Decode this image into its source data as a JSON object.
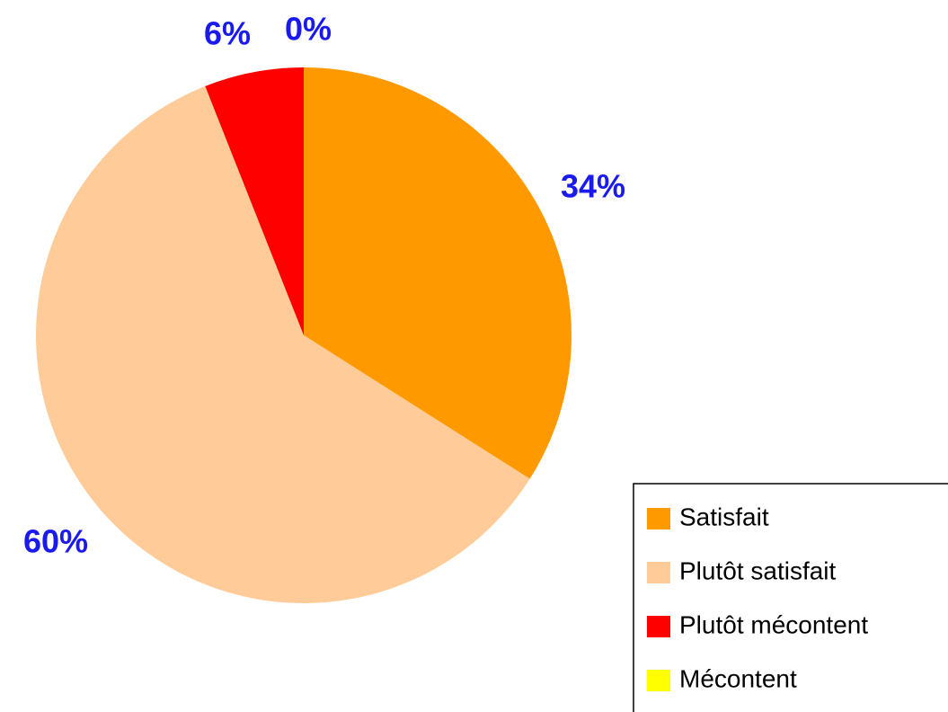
{
  "chart_data": {
    "type": "pie",
    "categories": [
      "Satisfait",
      "Plutôt satisfait",
      "Plutôt mécontent",
      "Mécontent"
    ],
    "values": [
      34,
      60,
      6,
      0
    ],
    "value_labels": [
      "34%",
      "60%",
      "6%",
      "0%"
    ],
    "colors": [
      "#ff9900",
      "#ffcc99",
      "#ff0000",
      "#ffff00"
    ],
    "legend": "right"
  }
}
